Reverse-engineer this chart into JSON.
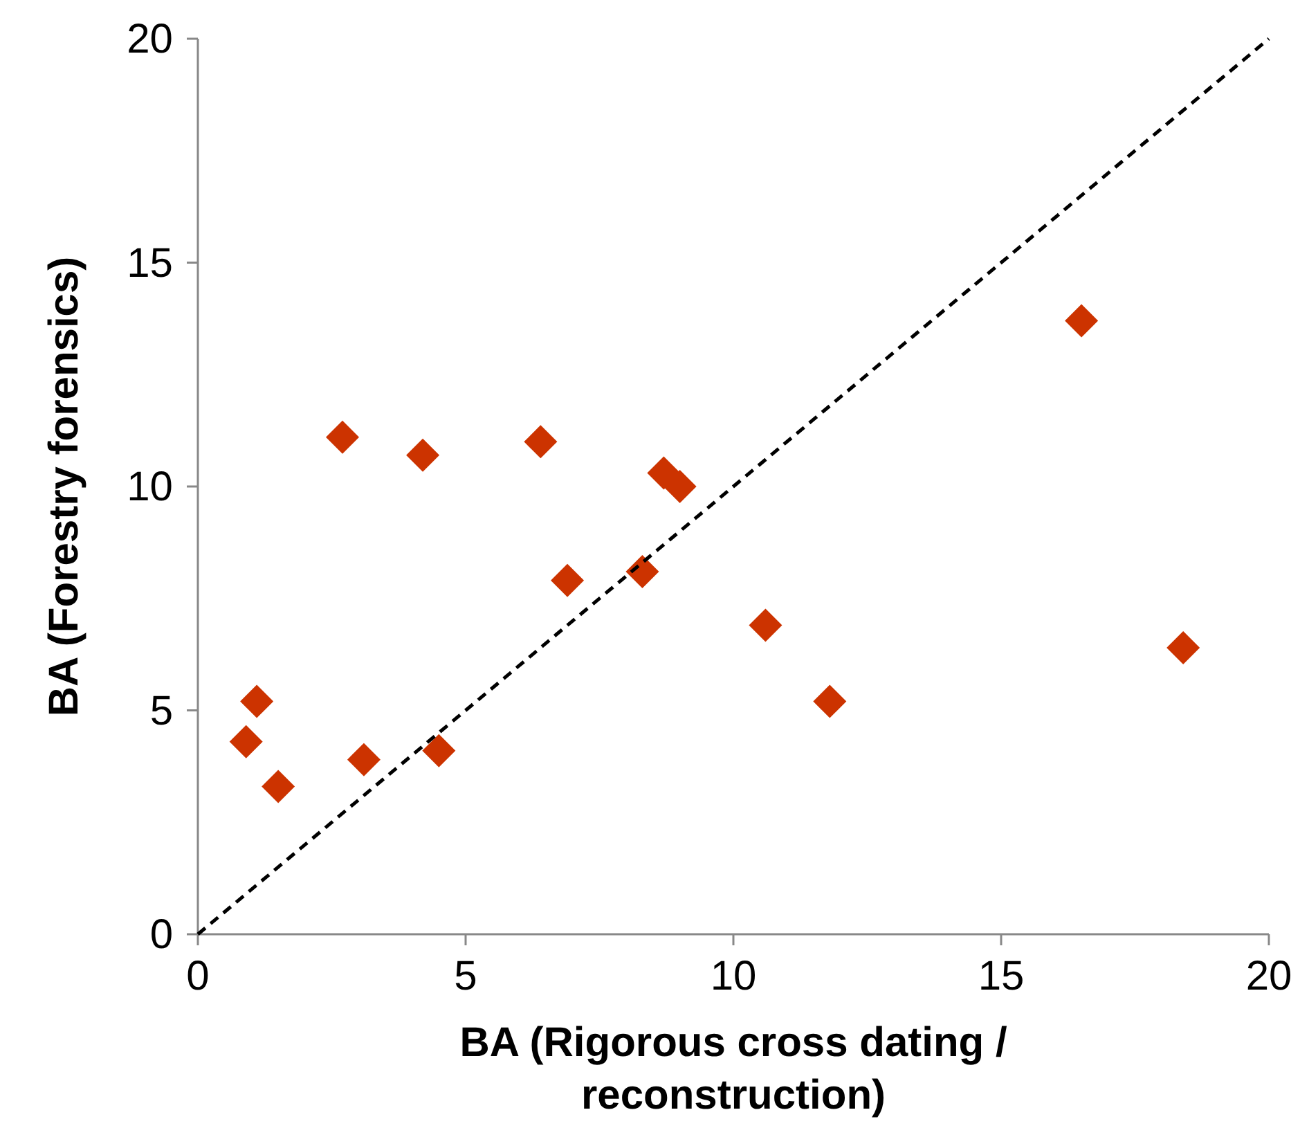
{
  "chart_data": {
    "type": "scatter",
    "xlabel": "BA (Rigorous cross dating / reconstruction)",
    "ylabel": "BA (Forestry forensics)",
    "xlim": [
      0,
      20
    ],
    "ylim": [
      0,
      20
    ],
    "xticks": [
      0,
      5,
      10,
      15,
      20
    ],
    "yticks": [
      0,
      5,
      10,
      15,
      20
    ],
    "grid": false,
    "series": [
      {
        "color": "#cc3300",
        "marker": "diamond",
        "x": [
          0.9,
          1.1,
          1.5,
          2.7,
          3.1,
          4.2,
          4.5,
          6.4,
          6.9,
          8.3,
          8.7,
          9.0,
          10.6,
          11.8,
          16.5,
          18.4
        ],
        "values": [
          4.3,
          5.2,
          3.3,
          11.1,
          3.9,
          10.7,
          4.1,
          11.0,
          7.9,
          8.1,
          10.3,
          10.0,
          6.9,
          5.2,
          13.7,
          6.4
        ]
      },
      {
        "type": "line",
        "color": "#000000",
        "line_style": "dashed",
        "marker": "none",
        "x": [
          0,
          20
        ],
        "values": [
          0,
          20
        ]
      }
    ]
  }
}
